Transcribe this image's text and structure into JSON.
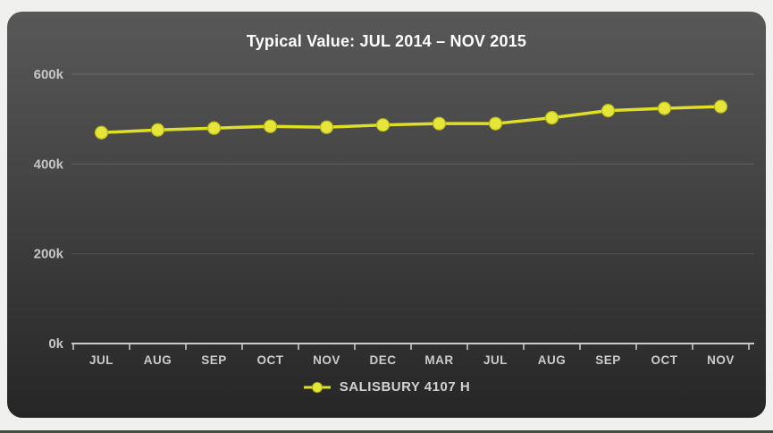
{
  "window": {
    "background": "#f0f0ee",
    "bottom_bar_color": "#3c503c"
  },
  "panel": {
    "bg_top": "#585858",
    "bg_bottom": "#262626"
  },
  "chart_data": {
    "type": "line",
    "title": "Typical Value: JUL 2014 – NOV 2015",
    "categories": [
      "JUL",
      "AUG",
      "SEP",
      "OCT",
      "NOV",
      "DEC",
      "MAR",
      "JUL",
      "AUG",
      "SEP",
      "OCT",
      "NOV"
    ],
    "series": [
      {
        "name": "SALISBURY 4107 H",
        "line_color": "#dfdf25",
        "marker_fill": "#e6e63a",
        "marker_stroke": "#b9b918",
        "values": [
          470000,
          476000,
          480000,
          484000,
          482000,
          487000,
          490000,
          490000,
          503000,
          519000,
          524000,
          528000
        ]
      }
    ],
    "xlabel": "",
    "ylabel": "",
    "ylim": [
      0,
      600000
    ],
    "yticks": [
      {
        "value": 600000,
        "label": "600k"
      },
      {
        "value": 400000,
        "label": "400k"
      },
      {
        "value": 200000,
        "label": "200k"
      },
      {
        "value": 0,
        "label": "0k"
      }
    ],
    "grid": true,
    "legend_position": "bottom",
    "axis_color": "#c9c9c9",
    "gridline_color": "rgba(255,255,255,0.13)"
  }
}
